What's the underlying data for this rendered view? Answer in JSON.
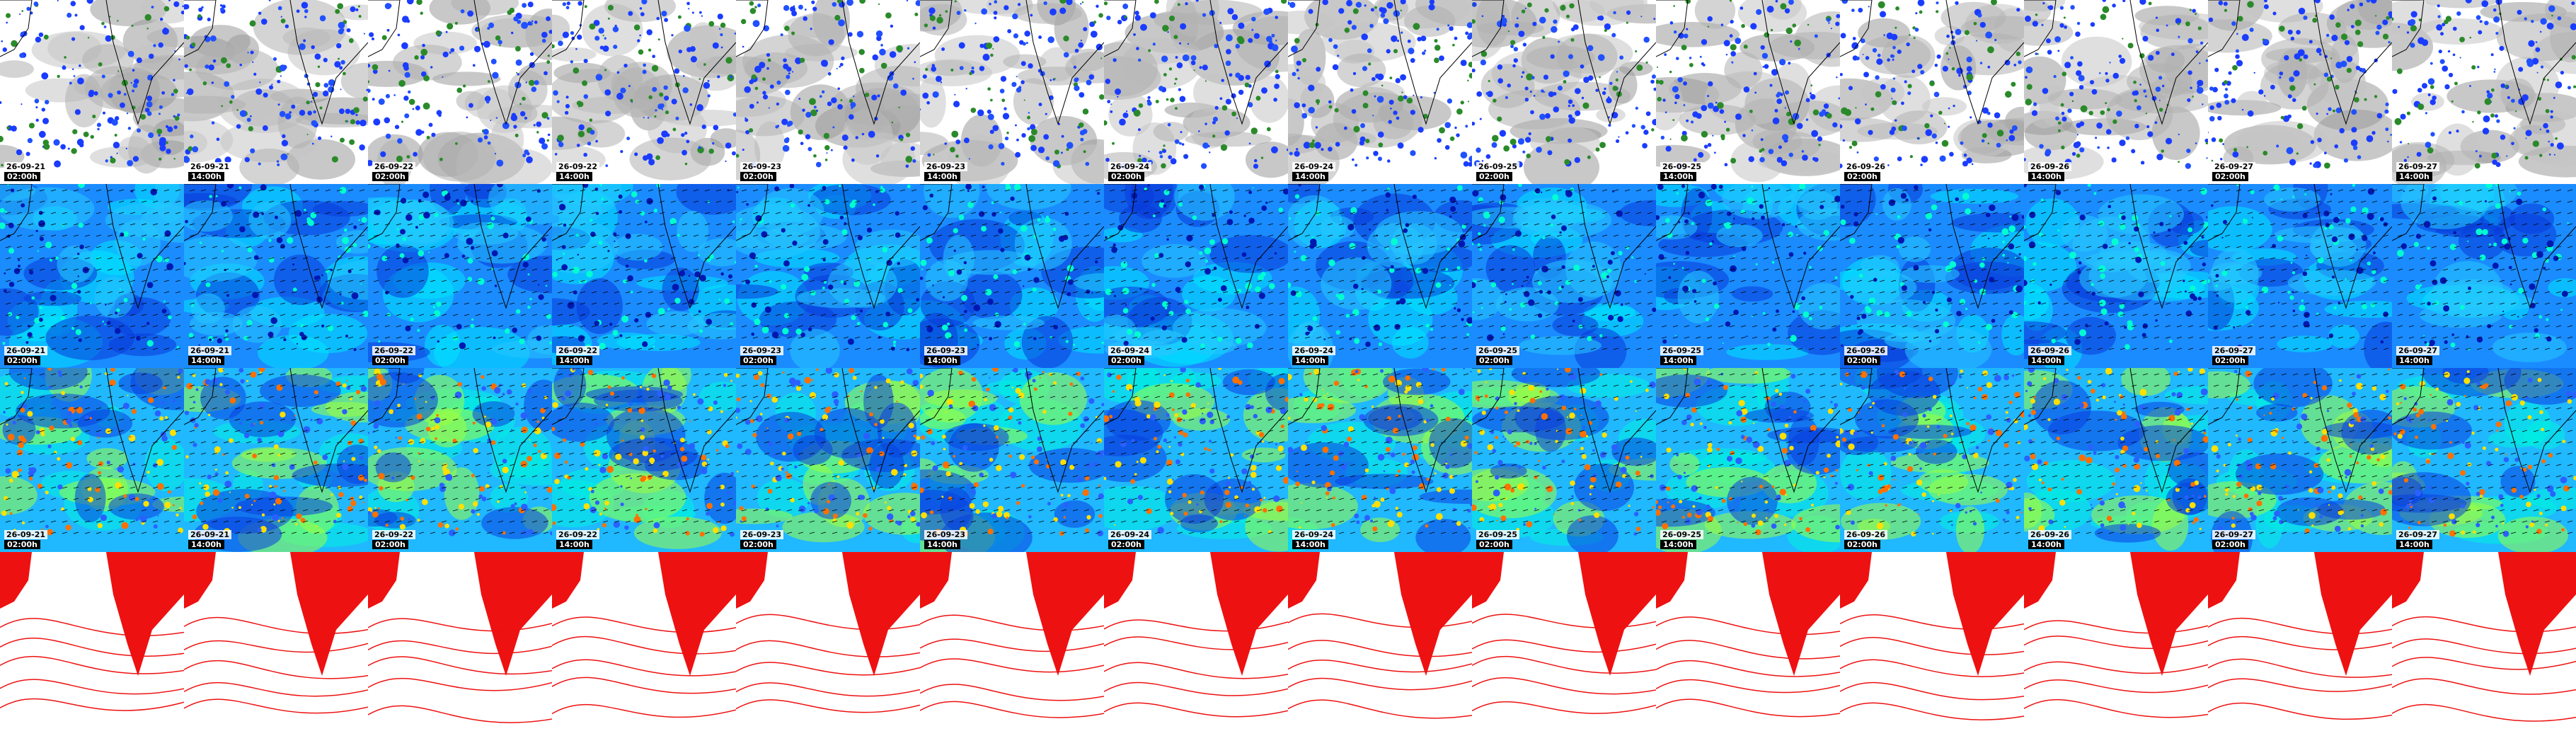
{
  "rows": [
    {
      "tiles": [
        {
          "date": "26-09-21",
          "time": "02:00h"
        },
        {
          "date": "26-09-21",
          "time": "14:00h"
        },
        {
          "date": "26-09-22",
          "time": "02:00h"
        },
        {
          "date": "26-09-22",
          "time": "14:00h"
        },
        {
          "date": "26-09-23",
          "time": "02:00h"
        },
        {
          "date": "26-09-23",
          "time": "14:00h"
        },
        {
          "date": "26-09-24",
          "time": "02:00h"
        },
        {
          "date": "26-09-24",
          "time": "14:00h"
        },
        {
          "date": "26-09-25",
          "time": "02:00h"
        },
        {
          "date": "26-09-25",
          "time": "14:00h"
        },
        {
          "date": "26-09-26",
          "time": "02:00h"
        },
        {
          "date": "26-09-26",
          "time": "14:00h"
        },
        {
          "date": "26-09-27",
          "time": "02:00h"
        },
        {
          "date": "26-09-27",
          "time": "14:00h"
        }
      ]
    },
    {
      "tiles": [
        {
          "date": "26-09-21",
          "time": "02:00h"
        },
        {
          "date": "26-09-21",
          "time": "14:00h"
        },
        {
          "date": "26-09-22",
          "time": "02:00h"
        },
        {
          "date": "26-09-22",
          "time": "14:00h"
        },
        {
          "date": "26-09-23",
          "time": "02:00h"
        },
        {
          "date": "26-09-23",
          "time": "14:00h"
        },
        {
          "date": "26-09-24",
          "time": "02:00h"
        },
        {
          "date": "26-09-24",
          "time": "14:00h"
        },
        {
          "date": "26-09-25",
          "time": "02:00h"
        },
        {
          "date": "26-09-25",
          "time": "14:00h"
        },
        {
          "date": "26-09-26",
          "time": "02:00h"
        },
        {
          "date": "26-09-26",
          "time": "14:00h"
        },
        {
          "date": "26-09-27",
          "time": "02:00h"
        },
        {
          "date": "26-09-27",
          "time": "14:00h"
        }
      ]
    },
    {
      "tiles": [
        {
          "date": "26-09-21",
          "time": "02:00h"
        },
        {
          "date": "26-09-21",
          "time": "14:00h"
        },
        {
          "date": "26-09-22",
          "time": "02:00h"
        },
        {
          "date": "26-09-22",
          "time": "14:00h"
        },
        {
          "date": "26-09-23",
          "time": "02:00h"
        },
        {
          "date": "26-09-23",
          "time": "14:00h"
        },
        {
          "date": "26-09-24",
          "time": "02:00h"
        },
        {
          "date": "26-09-24",
          "time": "14:00h"
        },
        {
          "date": "26-09-25",
          "time": "02:00h"
        },
        {
          "date": "26-09-25",
          "time": "14:00h"
        },
        {
          "date": "26-09-26",
          "time": "02:00h"
        },
        {
          "date": "26-09-26",
          "time": "14:00h"
        },
        {
          "date": "26-09-27",
          "time": "02:00h"
        },
        {
          "date": "26-09-27",
          "time": "14:00h"
        }
      ]
    }
  ]
}
